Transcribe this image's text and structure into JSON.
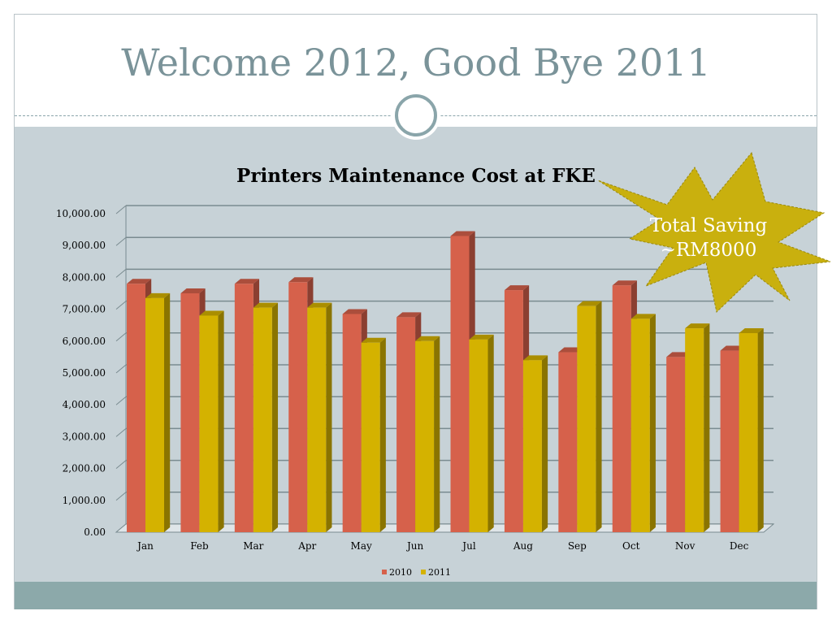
{
  "slide": {
    "title": "Welcome 2012, Good Bye 2011"
  },
  "callout": {
    "line1": "Total Saving",
    "line2": "~RM8000",
    "color": "#c9b00e"
  },
  "colors": {
    "series_2010": "#d6614b",
    "series_2011": "#d4b200",
    "panel": "#c7d2d7",
    "bottom_bar": "#8ca9aa",
    "title": "#7a9399"
  },
  "chart_data": {
    "type": "bar",
    "title": "Printers Maintenance Cost at FKE",
    "categories": [
      "Jan",
      "Feb",
      "Mar",
      "Apr",
      "May",
      "Jun",
      "Jul",
      "Aug",
      "Sep",
      "Oct",
      "Nov",
      "Dec"
    ],
    "series": [
      {
        "name": "2010",
        "values": [
          7800,
          7500,
          7800,
          7850,
          6850,
          6750,
          9300,
          7600,
          5650,
          7750,
          5500,
          5700
        ]
      },
      {
        "name": "2011",
        "values": [
          7350,
          6800,
          7050,
          7050,
          5950,
          6000,
          6050,
          5400,
          7100,
          6700,
          6400,
          6250
        ]
      }
    ],
    "yticks": [
      "0.00",
      "1,000.00",
      "2,000.00",
      "3,000.00",
      "4,000.00",
      "5,000.00",
      "6,000.00",
      "7,000.00",
      "8,000.00",
      "9,000.00",
      "10,000.00"
    ],
    "ylim": [
      0,
      10000
    ],
    "grid": true,
    "legend": "bottom"
  }
}
